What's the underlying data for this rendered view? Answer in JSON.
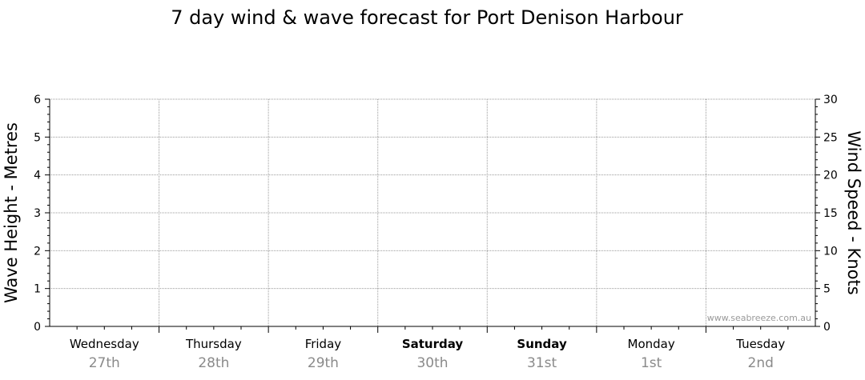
{
  "chart_data": {
    "type": "line",
    "title": "7 day wind & wave forecast for Port Denison Harbour",
    "ylabel": "Wave Height - Metres",
    "y2label": "Wind Speed - Knots",
    "ylim": [
      0,
      6
    ],
    "y2lim": [
      0,
      30
    ],
    "yticks": [
      "0",
      "1",
      "2",
      "3",
      "4",
      "5",
      "6"
    ],
    "y2ticks": [
      "0",
      "5",
      "10",
      "15",
      "20",
      "25",
      "30"
    ],
    "days": [
      {
        "name": "Wednesday",
        "date": "27th",
        "bold": false
      },
      {
        "name": "Thursday",
        "date": "28th",
        "bold": false
      },
      {
        "name": "Friday",
        "date": "29th",
        "bold": false
      },
      {
        "name": "Saturday",
        "date": "30th",
        "bold": true
      },
      {
        "name": "Sunday",
        "date": "31st",
        "bold": true
      },
      {
        "name": "Monday",
        "date": "1st",
        "bold": false
      },
      {
        "name": "Tuesday",
        "date": "2nd",
        "bold": false
      }
    ],
    "series": [],
    "grid": true,
    "watermark": "www.seabreeze.com.au"
  },
  "colors": {
    "axis": "#000000",
    "grid": "#9a9a9a",
    "date_text": "#8a8a8a"
  }
}
